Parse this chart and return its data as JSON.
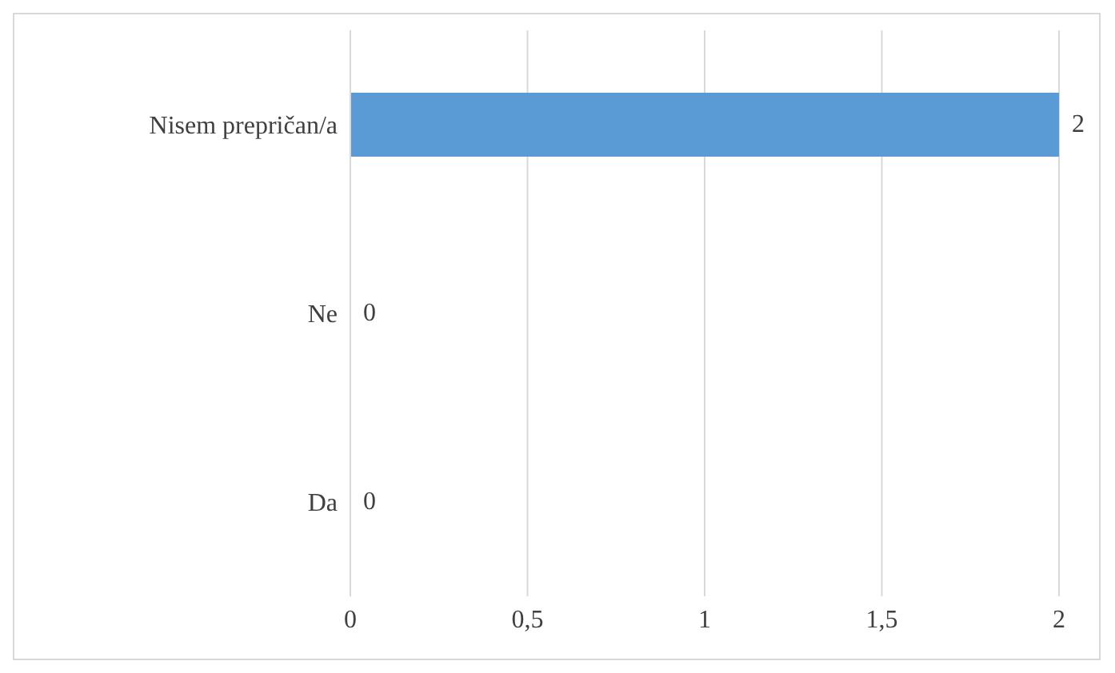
{
  "chart_data": {
    "type": "bar",
    "orientation": "horizontal",
    "categories": [
      "Nisem prepričan/a",
      "Ne",
      "Da"
    ],
    "values": [
      2,
      0,
      0
    ],
    "color": "#5b9bd5",
    "xlim": [
      0,
      2
    ],
    "xticks": [
      0,
      {
        "value": 0.5,
        "label": "0,5"
      },
      1,
      {
        "value": 1.5,
        "label": "1,5"
      },
      2
    ],
    "grid": "x",
    "data_labels": true
  }
}
